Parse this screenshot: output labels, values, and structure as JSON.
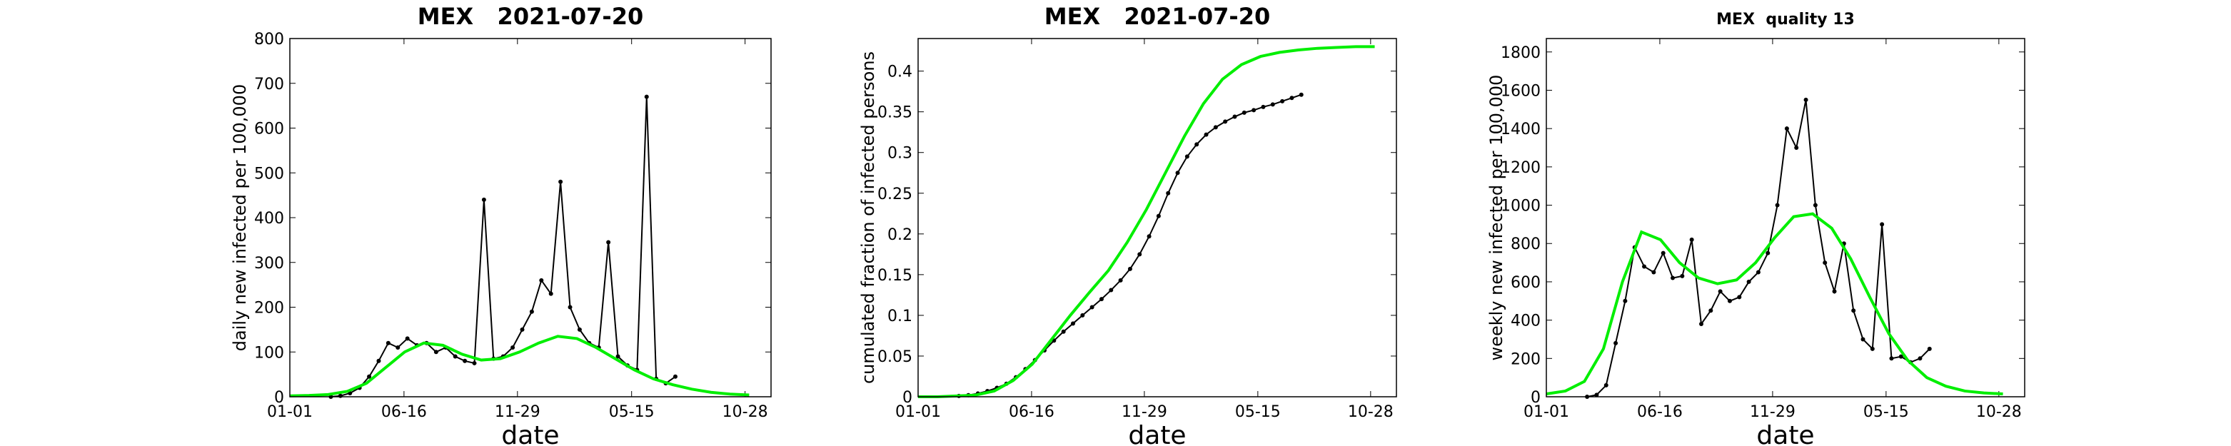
{
  "chart_data": [
    {
      "type": "line",
      "title": "MEX   2021-07-20",
      "title_bold": true,
      "ylabel": "daily new infected per 100,000",
      "xlabel": "date",
      "xlim": [
        0,
        704
      ],
      "xticks": [
        {
          "value": 0,
          "label": "01-01"
        },
        {
          "value": 167,
          "label": "06-16"
        },
        {
          "value": 333,
          "label": "11-29"
        },
        {
          "value": 500,
          "label": "05-15"
        },
        {
          "value": 666,
          "label": "10-28"
        }
      ],
      "ylim": [
        0,
        800
      ],
      "yticks": [
        0,
        100,
        200,
        300,
        400,
        500,
        600,
        700,
        800
      ],
      "series": [
        {
          "color": "#000000",
          "markers": true,
          "x": [
            60,
            74,
            88,
            102,
            116,
            130,
            144,
            158,
            172,
            186,
            200,
            214,
            228,
            242,
            256,
            270,
            284,
            298,
            312,
            326,
            340,
            354,
            368,
            382,
            396,
            410,
            424,
            438,
            452,
            466,
            480,
            494,
            508,
            522,
            536,
            550,
            564
          ],
          "values": [
            0,
            2,
            8,
            20,
            45,
            80,
            120,
            110,
            130,
            115,
            120,
            100,
            110,
            90,
            80,
            75,
            440,
            85,
            90,
            110,
            150,
            190,
            260,
            230,
            480,
            200,
            150,
            120,
            110,
            345,
            90,
            70,
            60,
            670,
            40,
            30,
            45
          ]
        },
        {
          "color": "#00ee00",
          "markers": false,
          "x": [
            0,
            28,
            56,
            84,
            112,
            140,
            168,
            196,
            224,
            252,
            280,
            308,
            336,
            364,
            392,
            420,
            448,
            476,
            504,
            532,
            560,
            588,
            616,
            644,
            672
          ],
          "values": [
            2,
            3,
            5,
            12,
            30,
            65,
            100,
            120,
            115,
            95,
            82,
            85,
            100,
            120,
            135,
            130,
            110,
            85,
            60,
            40,
            27,
            17,
            10,
            6,
            4
          ]
        }
      ]
    },
    {
      "type": "line",
      "title": "MEX   2021-07-20",
      "title_bold": true,
      "ylabel": "cumulated fraction of infected persons",
      "xlabel": "date",
      "xlim": [
        0,
        704
      ],
      "xticks": [
        {
          "value": 0,
          "label": "01-01"
        },
        {
          "value": 167,
          "label": "06-16"
        },
        {
          "value": 333,
          "label": "11-29"
        },
        {
          "value": 500,
          "label": "05-15"
        },
        {
          "value": 666,
          "label": "10-28"
        }
      ],
      "ylim": [
        0,
        0.44
      ],
      "yticks": [
        0,
        0.05,
        0.1,
        0.15,
        0.2,
        0.25,
        0.3,
        0.35,
        0.4
      ],
      "series": [
        {
          "color": "#000000",
          "markers": true,
          "x": [
            60,
            74,
            88,
            102,
            116,
            130,
            144,
            158,
            172,
            186,
            200,
            214,
            228,
            242,
            256,
            270,
            284,
            298,
            312,
            326,
            340,
            354,
            368,
            382,
            396,
            410,
            424,
            438,
            452,
            466,
            480,
            494,
            508,
            522,
            536,
            550,
            564
          ],
          "values": [
            0.001,
            0.002,
            0.004,
            0.007,
            0.011,
            0.016,
            0.024,
            0.034,
            0.045,
            0.057,
            0.069,
            0.08,
            0.09,
            0.1,
            0.11,
            0.12,
            0.131,
            0.143,
            0.157,
            0.175,
            0.197,
            0.222,
            0.25,
            0.275,
            0.295,
            0.31,
            0.322,
            0.331,
            0.338,
            0.344,
            0.349,
            0.352,
            0.356,
            0.359,
            0.363,
            0.367,
            0.371
          ]
        },
        {
          "color": "#00ee00",
          "markers": false,
          "x": [
            0,
            28,
            56,
            84,
            112,
            140,
            168,
            196,
            224,
            252,
            280,
            308,
            336,
            364,
            392,
            420,
            448,
            476,
            504,
            532,
            560,
            588,
            616,
            644,
            672
          ],
          "values": [
            0,
            0,
            0.001,
            0.002,
            0.007,
            0.02,
            0.04,
            0.07,
            0.1,
            0.128,
            0.155,
            0.19,
            0.23,
            0.275,
            0.32,
            0.36,
            0.39,
            0.408,
            0.418,
            0.423,
            0.426,
            0.428,
            0.429,
            0.43,
            0.43
          ]
        }
      ]
    },
    {
      "type": "line",
      "title": "MEX  quality 13",
      "title_bold": true,
      "ylabel": "weekly new infected per 100,000",
      "xlabel": "date",
      "xlim": [
        0,
        704
      ],
      "xticks": [
        {
          "value": 0,
          "label": "01-01"
        },
        {
          "value": 167,
          "label": "06-16"
        },
        {
          "value": 333,
          "label": "11-29"
        },
        {
          "value": 500,
          "label": "05-15"
        },
        {
          "value": 666,
          "label": "10-28"
        }
      ],
      "ylim": [
        0,
        1870
      ],
      "yticks": [
        0,
        200,
        400,
        600,
        800,
        1000,
        1200,
        1400,
        1600,
        1800
      ],
      "series": [
        {
          "color": "#000000",
          "markers": true,
          "x": [
            60,
            74,
            88,
            102,
            116,
            130,
            144,
            158,
            172,
            186,
            200,
            214,
            228,
            242,
            256,
            270,
            284,
            298,
            312,
            326,
            340,
            354,
            368,
            382,
            396,
            410,
            424,
            438,
            452,
            466,
            480,
            494,
            508,
            522,
            536,
            550,
            564
          ],
          "values": [
            0,
            10,
            60,
            280,
            500,
            780,
            680,
            650,
            750,
            620,
            630,
            820,
            380,
            450,
            550,
            500,
            520,
            600,
            650,
            750,
            1000,
            1400,
            1300,
            1550,
            1000,
            700,
            550,
            800,
            450,
            300,
            250,
            900,
            200,
            210,
            180,
            200,
            250
          ]
        },
        {
          "color": "#00ee00",
          "markers": false,
          "x": [
            0,
            28,
            56,
            84,
            112,
            140,
            168,
            196,
            224,
            252,
            280,
            308,
            336,
            364,
            392,
            420,
            448,
            476,
            504,
            532,
            560,
            588,
            616,
            644,
            672
          ],
          "values": [
            15,
            30,
            80,
            250,
            600,
            860,
            820,
            700,
            620,
            590,
            610,
            700,
            830,
            940,
            955,
            880,
            720,
            520,
            330,
            190,
            100,
            55,
            30,
            20,
            15
          ]
        }
      ]
    }
  ]
}
